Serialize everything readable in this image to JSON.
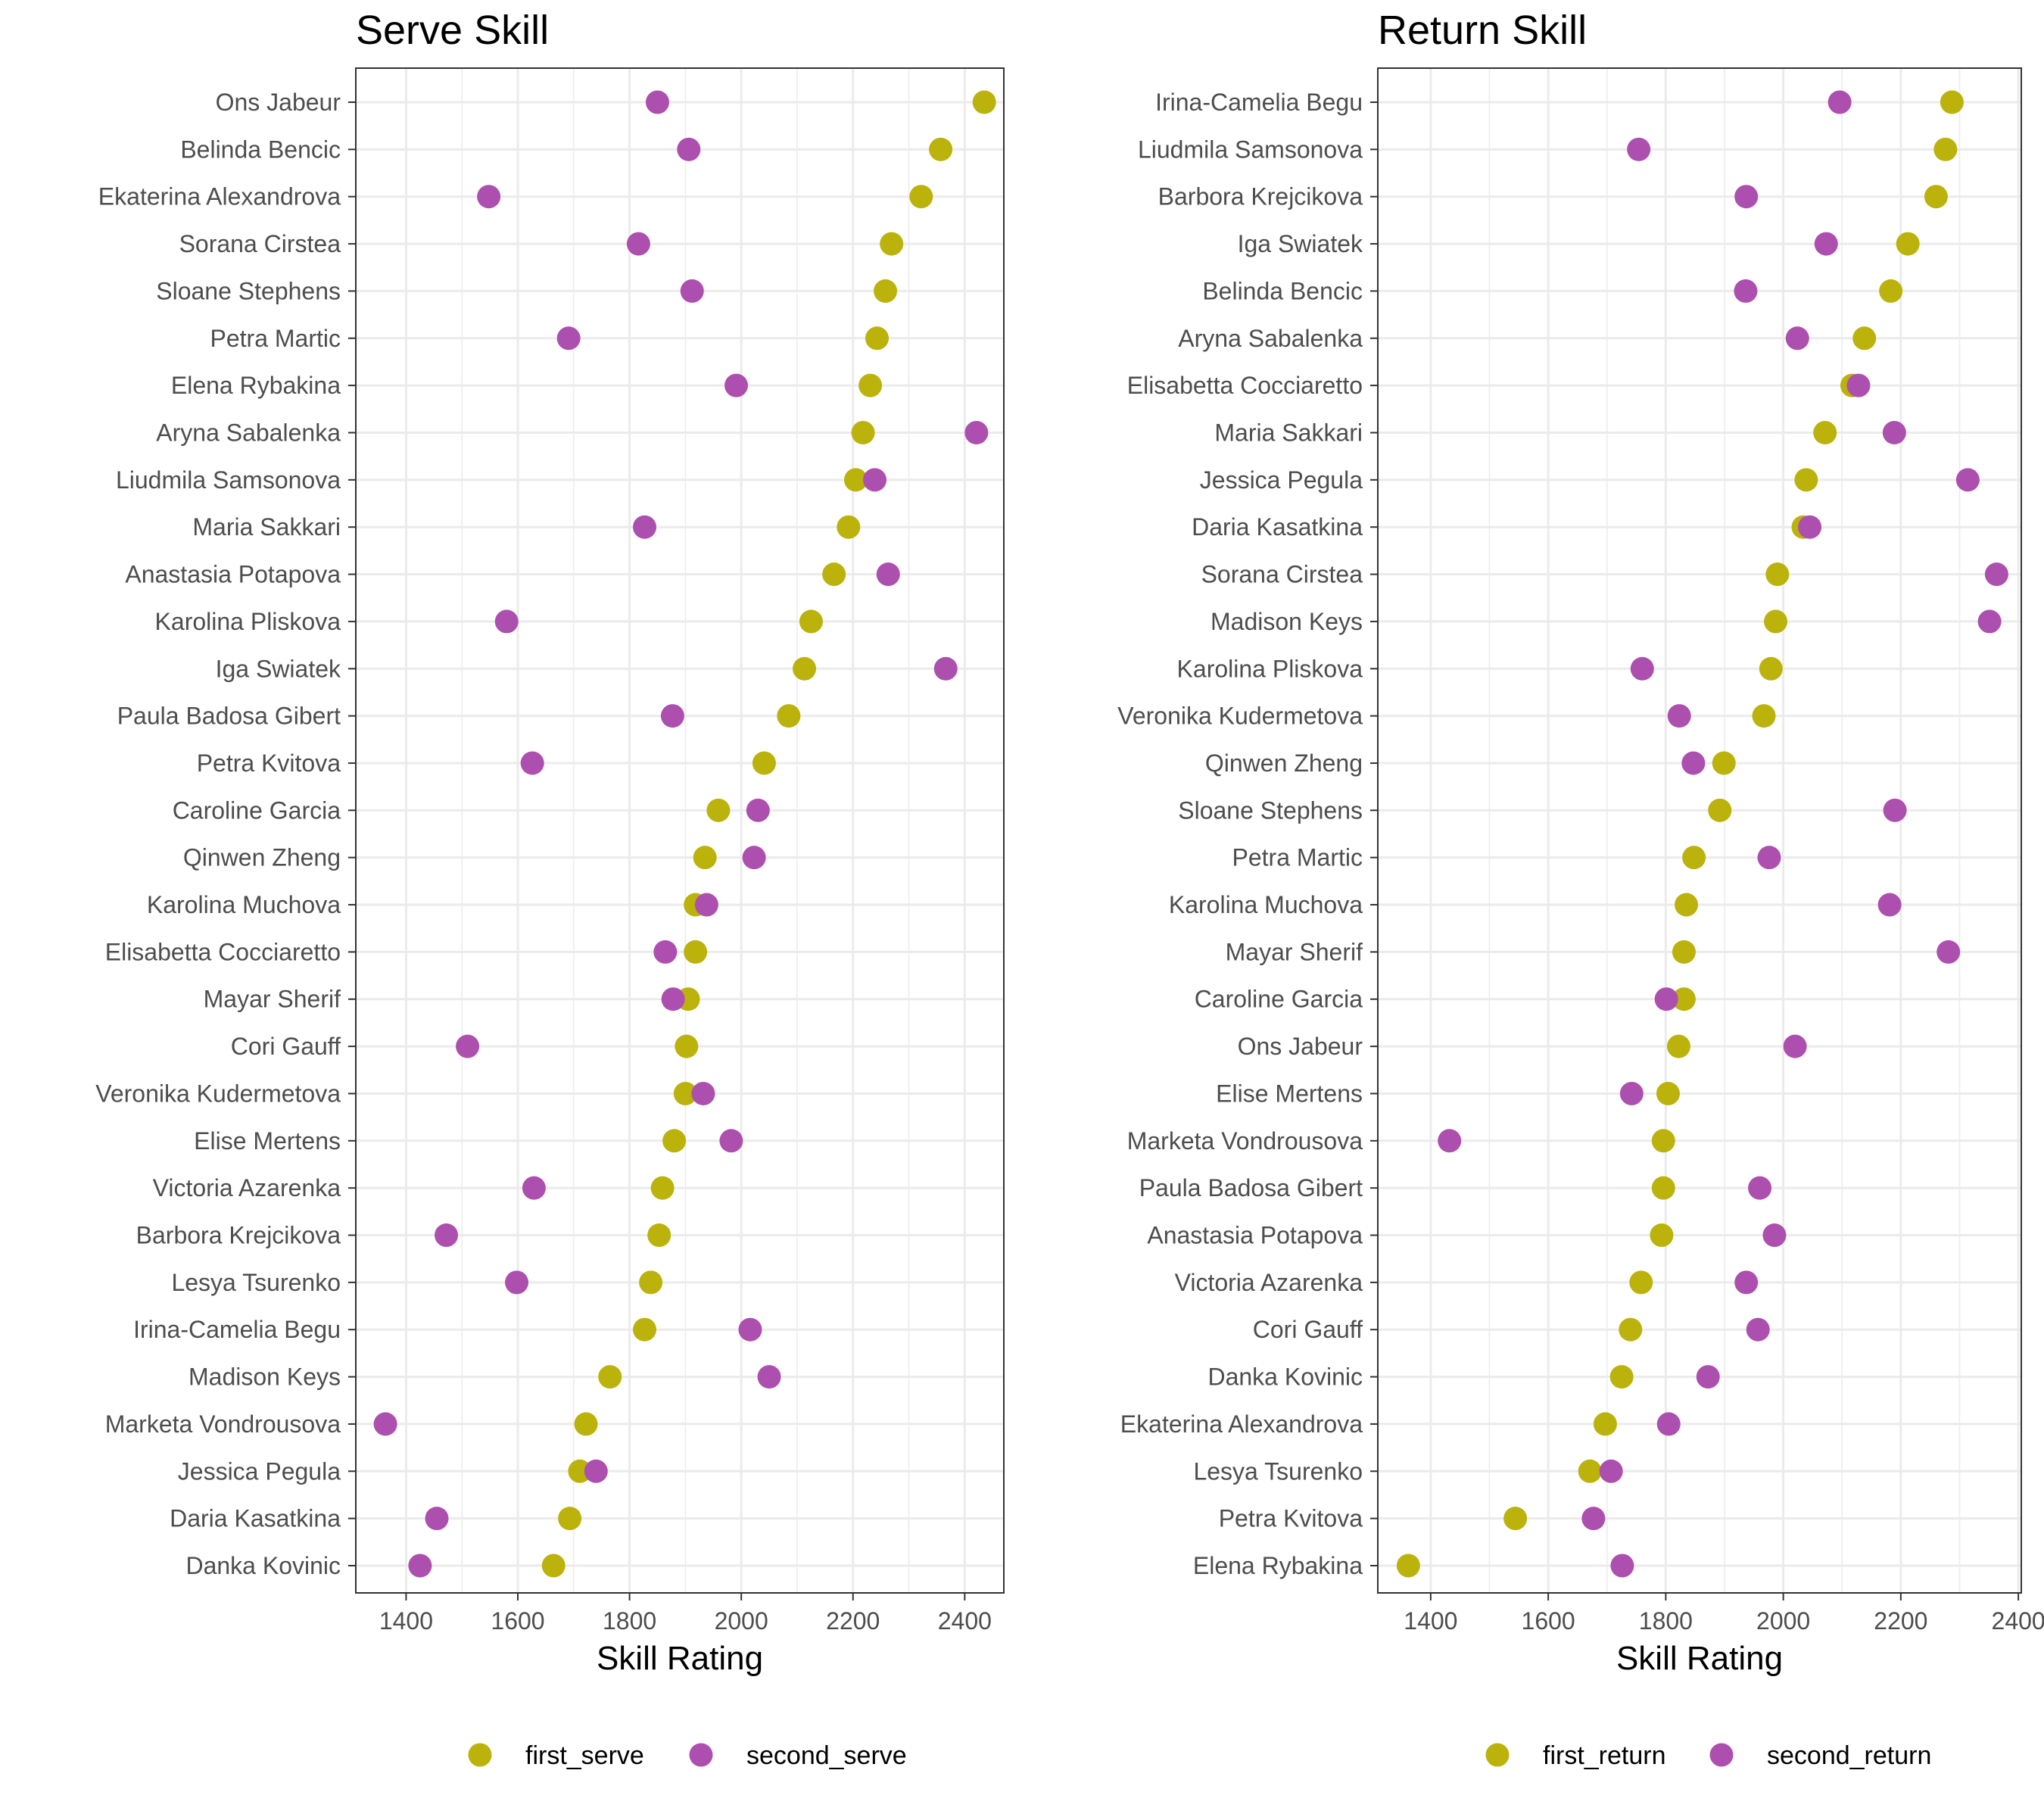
{
  "chart_data": [
    {
      "type": "scatter",
      "title": "Serve Skill",
      "xlabel": "Skill Rating",
      "ylabel": "",
      "xlim": [
        1310,
        2470
      ],
      "xticks": [
        1400,
        1600,
        1800,
        2000,
        2200,
        2400
      ],
      "grid": true,
      "legend_position": "bottom",
      "categories": [
        "Ons Jabeur",
        "Belinda Bencic",
        "Ekaterina Alexandrova",
        "Sorana Cirstea",
        "Sloane Stephens",
        "Petra Martic",
        "Elena Rybakina",
        "Aryna Sabalenka",
        "Liudmila Samsonova",
        "Maria Sakkari",
        "Anastasia Potapova",
        "Karolina Pliskova",
        "Iga Swiatek",
        "Paula Badosa Gibert",
        "Petra Kvitova",
        "Caroline Garcia",
        "Qinwen Zheng",
        "Karolina Muchova",
        "Elisabetta Cocciaretto",
        "Mayar Sherif",
        "Cori Gauff",
        "Veronika Kudermetova",
        "Elise Mertens",
        "Victoria Azarenka",
        "Barbora Krejcikova",
        "Lesya Tsurenko",
        "Irina-Camelia Begu",
        "Madison Keys",
        "Marketa Vondrousova",
        "Jessica Pegula",
        "Daria Kasatkina",
        "Danka Kovinic"
      ],
      "series": [
        {
          "name": "first_serve",
          "color": "#BBB20B",
          "values": [
            2435,
            2357,
            2322,
            2269,
            2258,
            2243,
            2231,
            2218,
            2205,
            2192,
            2166,
            2125,
            2113,
            2085,
            2041,
            1959,
            1935,
            1918,
            1918,
            1905,
            1902,
            1900,
            1880,
            1859,
            1853,
            1838,
            1827,
            1765,
            1722,
            1711,
            1693,
            1664
          ]
        },
        {
          "name": "second_serve",
          "color": "#AC4FAE",
          "values": [
            1850,
            1906,
            1548,
            1816,
            1912,
            1691,
            1991,
            2421,
            2239,
            1827,
            2263,
            1580,
            2366,
            1877,
            1626,
            2030,
            2023,
            1938,
            1864,
            1878,
            1510,
            1932,
            1982,
            1629,
            1472,
            1598,
            2016,
            2050,
            1363,
            1740,
            1455,
            1425
          ]
        }
      ]
    },
    {
      "type": "scatter",
      "title": "Return Skill",
      "xlabel": "Skill Rating",
      "ylabel": "",
      "xlim": [
        1310,
        2405
      ],
      "xticks": [
        1400,
        1600,
        1800,
        2000,
        2200,
        2400
      ],
      "grid": true,
      "legend_position": "bottom",
      "categories": [
        "Irina-Camelia Begu",
        "Liudmila Samsonova",
        "Barbora Krejcikova",
        "Iga Swiatek",
        "Belinda Bencic",
        "Aryna Sabalenka",
        "Elisabetta Cocciaretto",
        "Maria Sakkari",
        "Jessica Pegula",
        "Daria Kasatkina",
        "Sorana Cirstea",
        "Madison Keys",
        "Karolina Pliskova",
        "Veronika Kudermetova",
        "Qinwen Zheng",
        "Sloane Stephens",
        "Petra Martic",
        "Karolina Muchova",
        "Mayar Sherif",
        "Caroline Garcia",
        "Ons Jabeur",
        "Elise Mertens",
        "Marketa Vondrousova",
        "Paula Badosa Gibert",
        "Anastasia Potapova",
        "Victoria Azarenka",
        "Cori Gauff",
        "Danka Kovinic",
        "Ekaterina Alexandrova",
        "Lesya Tsurenko",
        "Petra Kvitova",
        "Elena Rybakina"
      ],
      "series": [
        {
          "name": "first_return",
          "color": "#BBB20B",
          "values": [
            2287,
            2276,
            2260,
            2212,
            2183,
            2138,
            2117,
            2071,
            2039,
            2034,
            1990,
            1987,
            1979,
            1967,
            1899,
            1892,
            1848,
            1835,
            1831,
            1831,
            1822,
            1804,
            1796,
            1796,
            1793,
            1758,
            1740,
            1725,
            1697,
            1671,
            1544,
            1362
          ]
        },
        {
          "name": "second_return",
          "color": "#AC4FAE",
          "values": [
            2096,
            1754,
            1937,
            2073,
            1936,
            2024,
            2128,
            2189,
            2314,
            2045,
            2363,
            2351,
            1760,
            1823,
            1847,
            2190,
            1976,
            2181,
            2281,
            1801,
            2020,
            1742,
            1432,
            1960,
            1985,
            1937,
            1957,
            1872,
            1805,
            1707,
            1677,
            1726
          ]
        }
      ]
    }
  ]
}
